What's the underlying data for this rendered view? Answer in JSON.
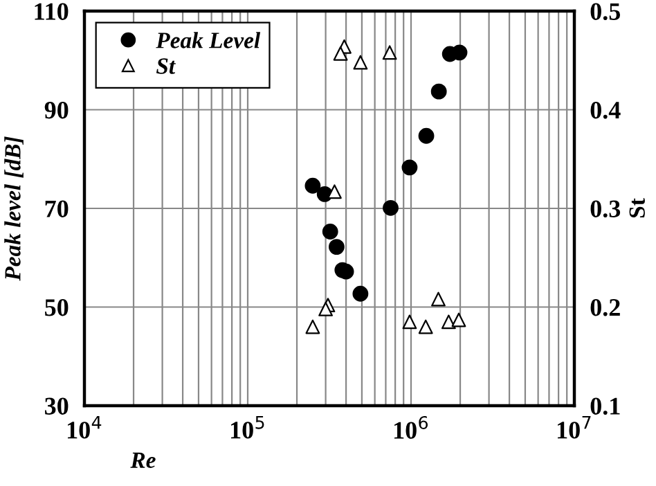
{
  "chart_data": {
    "type": "scatter",
    "xlabel": "Re",
    "ylabel": "Peak level [dB]",
    "y2label": "St",
    "log": "x",
    "grid": true,
    "legend": "top left",
    "xlim": [
      10000,
      10000000
    ],
    "xticks": [
      {
        "value": 10000,
        "label": "10$^{4}$"
      },
      {
        "value": 100000,
        "label": "10$^{5}$"
      },
      {
        "value": 1000000,
        "label": "10$^{6}$"
      },
      {
        "value": 10000000,
        "label": "10$^{7}$"
      }
    ],
    "ylim": [
      30,
      110
    ],
    "yticks": [
      30,
      50,
      70,
      90,
      110
    ],
    "y2lim": [
      0.1,
      0.5
    ],
    "y2ticks": [
      0.1,
      0.2,
      0.3,
      0.4,
      0.5
    ],
    "series": [
      {
        "name": "Peak Level",
        "color": "#000000",
        "marker": "circle",
        "x": [
          250000,
          296000,
          320000,
          350000,
          380000,
          400000,
          490000,
          750000,
          980000,
          1240000,
          1480000,
          1730000,
          1980000
        ],
        "values": [
          74.6,
          72.9,
          65.3,
          62.2,
          57.5,
          57.2,
          52.7,
          70.1,
          78.3,
          84.7,
          93.7,
          101.3,
          101.6
        ]
      },
      {
        "name": "St",
        "color": "#000000",
        "marker": "triangle",
        "axis": "y2",
        "x": [
          390000,
          370000,
          490000,
          740000,
          340000,
          310000,
          300000,
          250000,
          980000,
          1230000,
          1470000,
          1700000,
          1960000
        ],
        "values": [
          0.464,
          0.457,
          0.448,
          0.458,
          0.317,
          0.202,
          0.198,
          0.18,
          0.185,
          0.18,
          0.208,
          0.185,
          0.187
        ]
      }
    ]
  }
}
